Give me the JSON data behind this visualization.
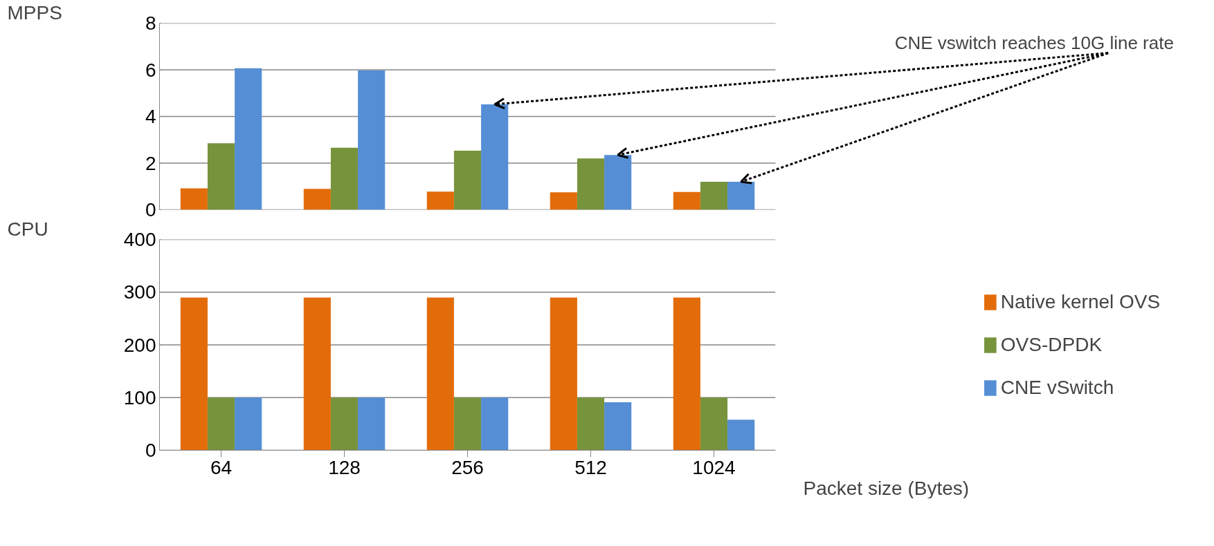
{
  "chart_data": [
    {
      "type": "bar",
      "ylabel": "MPPS",
      "categories": [
        "64",
        "128",
        "256",
        "512",
        "1024"
      ],
      "ylim": [
        0,
        8
      ],
      "yticks": [
        0,
        2,
        4,
        6,
        8
      ],
      "grid": "y",
      "tick_labels": "y",
      "series": [
        {
          "color": "#e36c0a",
          "values": [
            0.92,
            0.9,
            0.78,
            0.75,
            0.76
          ]
        },
        {
          "color": "#77933c",
          "values": [
            2.85,
            2.66,
            2.53,
            2.2,
            1.2
          ]
        },
        {
          "color": "#558ed5",
          "values": [
            6.07,
            5.97,
            4.52,
            2.35,
            1.2
          ]
        }
      ],
      "annotations": [
        "CNE vswitch reaches 10G line rate"
      ]
    },
    {
      "type": "bar",
      "ylabel": "CPU",
      "xlabel": "Packet size (Bytes)",
      "categories": [
        "64",
        "128",
        "256",
        "512",
        "1024"
      ],
      "ylim": [
        0,
        400
      ],
      "yticks": [
        0,
        100,
        200,
        300,
        400
      ],
      "grid": "y",
      "legend": "right",
      "series": [
        {
          "name": "Native kernel OVS",
          "color": "#e36c0a",
          "values": [
            290,
            290,
            290,
            290,
            290
          ]
        },
        {
          "name": "OVS-DPDK",
          "color": "#77933c",
          "values": [
            100,
            100,
            100,
            100,
            100
          ]
        },
        {
          "name": "CNE vSwitch",
          "color": "#558ed5",
          "values": [
            100,
            100,
            100,
            91,
            58
          ]
        }
      ]
    }
  ]
}
